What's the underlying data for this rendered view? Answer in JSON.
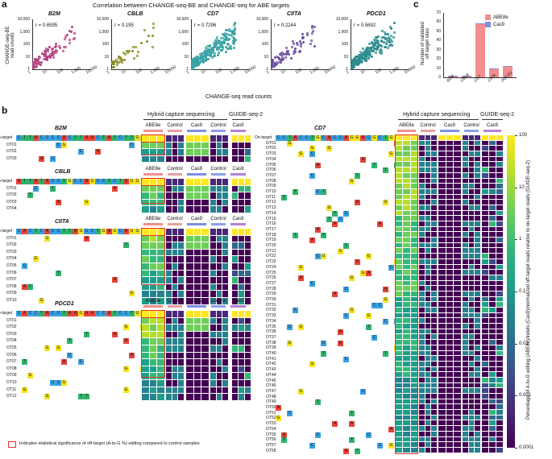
{
  "panel_a": {
    "label": "a",
    "title": "Correlation between CHANGE-seq-BE and CHANGE-seq for ABE targets",
    "ylabel_line1": "CHANGE-seq-BE",
    "ylabel_line2": "read counts",
    "xlabel": "CHANGE-seq read counts",
    "y_ticks": [
      "10,000",
      "1,000",
      "100",
      "10",
      "1"
    ],
    "x_ticks": [
      "1",
      "10",
      "100",
      "1,000",
      "10,000"
    ],
    "plots": [
      {
        "gene": "B2M",
        "r": "r = 0.6595",
        "color": "#b2457f"
      },
      {
        "gene": "CBLB",
        "r": "r = 0.195",
        "color": "#8a8b26"
      },
      {
        "gene": "CD7",
        "r": "r = 0.7296",
        "color": "#3aa3a6"
      },
      {
        "gene": "CIITA",
        "r": "r = 0.2244",
        "color": "#6a4fa0"
      },
      {
        "gene": "PDCD1",
        "r": "r = 0.5692",
        "color": "#2d8c8e"
      }
    ]
  },
  "panel_c": {
    "label": "c",
    "ylabel_line1": "Number of validated",
    "ylabel_line2": "off-target sites",
    "y_ticks": [
      "70",
      "60",
      "50",
      "40",
      "30",
      "20",
      "10",
      "0"
    ],
    "legend": [
      {
        "name": "ABE8e",
        "color": "#f28e8e"
      },
      {
        "name": "Cas9",
        "color": "#7d8fe0"
      }
    ],
    "chart_data": {
      "type": "bar",
      "categories": [
        "B2M",
        "CBLB",
        "CD7",
        "CIITA",
        "PDCD1"
      ],
      "series": [
        {
          "name": "ABE8e",
          "values": [
            1,
            1,
            58,
            9,
            11
          ]
        },
        {
          "name": "Cas9",
          "values": [
            1,
            1,
            1,
            1,
            1
          ]
        }
      ],
      "ylim": [
        0,
        70
      ],
      "stacked": true
    }
  },
  "panel_b": {
    "label": "b",
    "headers": {
      "hybrid": "Hybrid capture sequencing",
      "guide": "GUIDE-seq-2"
    },
    "col_labels": {
      "abe": "ABE8e",
      "control": "Control",
      "cas9": "Cas9",
      "control2": "Control",
      "cas9g": "Cas9"
    },
    "target_label": "On-target",
    "footnote": "Indicates statistical significance of off-target (A-to-G %) editing compared to control samples",
    "colorbar": {
      "ticks": [
        "100",
        "10",
        "1",
        "0.1",
        "0.01",
        "0.001",
        "0.0001"
      ],
      "label": "Percentage of A-to-G editing (ABE8e)/indels (Cas9)/normalized off-target reads relative to on-target reads (GUIDE-seq-2)"
    },
    "genes": [
      {
        "name": "B2M",
        "target_seq": "CTTACCCCACTTAACTATCTTGG",
        "rows": [
          "OT01",
          "OT02",
          "OT03"
        ]
      },
      {
        "name": "CBLB",
        "target_seq": "ATTATACCTGCCAGCCTCTAGG",
        "rows": [
          "OT01",
          "OT02",
          "OT03",
          "OT04"
        ]
      },
      {
        "name": "CIITA",
        "target_seq": "CACTCACCTTAGCCTGAGCAGG",
        "rows": [
          "OT01",
          "OT02",
          "OT03",
          "OT04",
          "OT05",
          "OT06",
          "OT07",
          "OT08",
          "OT09",
          "OT10"
        ]
      },
      {
        "name": "PDCD1",
        "target_seq": "CACCTACCTAAGAACCATCCTGG",
        "rows": [
          "OT01",
          "OT02",
          "OT03",
          "OT04",
          "OT05",
          "OT06",
          "OT07",
          "OT08",
          "OT09",
          "OT10",
          "OT11",
          "OT12"
        ]
      },
      {
        "name": "CD7",
        "target_seq": "CCTACCTGCACCAGGACGCTGG",
        "rows": [
          "OT01",
          "OT02",
          "OT03",
          "OT04",
          "OT05",
          "OT06",
          "OT07",
          "OT08",
          "OT09",
          "OT10",
          "OT11",
          "OT12",
          "OT13",
          "OT14",
          "OT15",
          "OT16",
          "OT17",
          "OT18",
          "OT19",
          "OT20",
          "OT21",
          "OT22",
          "OT23",
          "OT24",
          "OT25",
          "OT26",
          "OT27",
          "OT28",
          "OT29",
          "OT30",
          "OT31",
          "OT32",
          "OT33",
          "OT34",
          "OT35",
          "OT36",
          "OT37",
          "OT38",
          "OT39",
          "OT40",
          "OT41",
          "OT42",
          "OT43",
          "OT44",
          "OT45",
          "OT46",
          "OT47",
          "OT48",
          "OT49",
          "OT50",
          "OT51",
          "OT52",
          "OT53",
          "OT54",
          "OT55",
          "OT56",
          "OT57",
          "OT58"
        ]
      }
    ]
  }
}
